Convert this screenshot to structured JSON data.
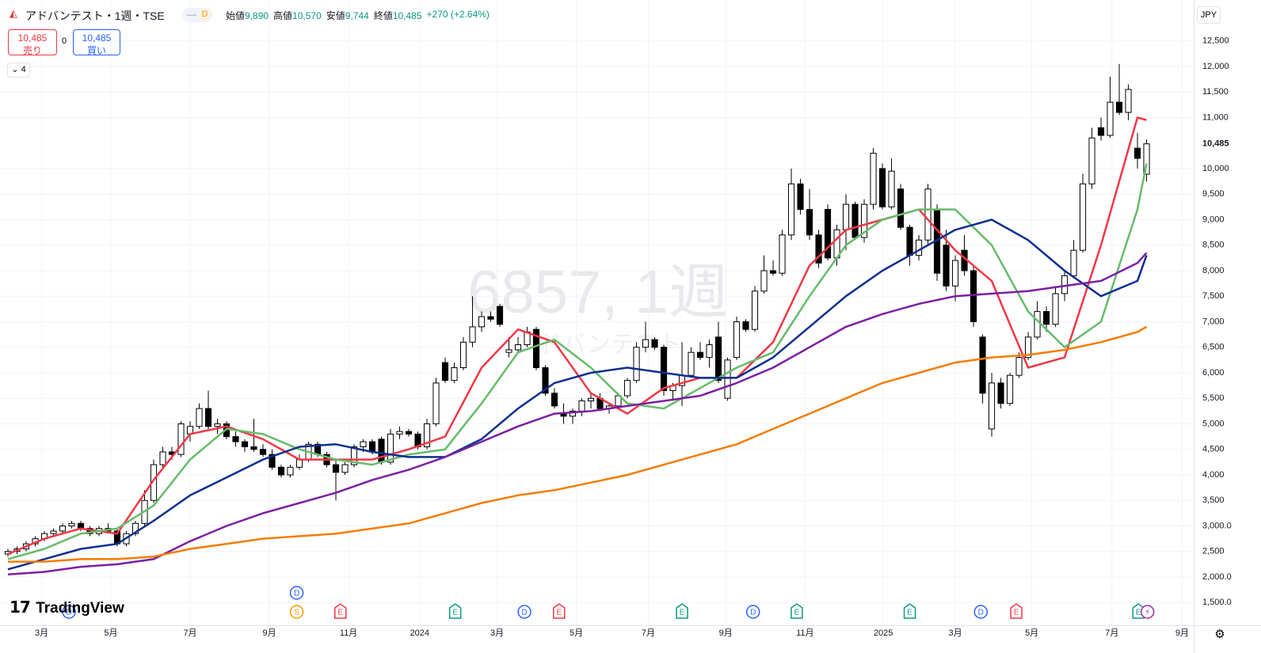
{
  "chart_data": {
    "type": "candlestick",
    "header": {
      "symbol": "アドバンテスト・1週・TSE",
      "interval_badge": "D",
      "ohlc": [
        {
          "label": "始値",
          "value": "9,890"
        },
        {
          "label": "高値",
          "value": "10,570"
        },
        {
          "label": "安値",
          "value": "9,744"
        },
        {
          "label": "終値",
          "value": "10,485"
        }
      ],
      "change": "+270 (+2.64%)"
    },
    "trade": {
      "sell_price": "10,485",
      "sell_label": "売り",
      "spread": "0",
      "buy_price": "10,485",
      "buy_label": "買い"
    },
    "indicators_count": "4",
    "currency": "JPY",
    "watermark": {
      "symbol": "6857, 1週",
      "name": "アドバンテスト"
    },
    "logo": "TradingView",
    "last_price": {
      "value": 10485,
      "label": "10,485"
    },
    "xlim": [
      -0.87,
      130.17
    ],
    "ylim": [
      1054,
      13302
    ],
    "xticks": [
      {
        "value": 3.7,
        "label": "3月"
      },
      {
        "value": 11.3,
        "label": "5月"
      },
      {
        "value": 20.0,
        "label": "7月"
      },
      {
        "value": 28.7,
        "label": "9月"
      },
      {
        "value": 37.4,
        "label": "11月"
      },
      {
        "value": 45.2,
        "label": "2024"
      },
      {
        "value": 53.7,
        "label": "3月"
      },
      {
        "value": 62.4,
        "label": "5月"
      },
      {
        "value": 70.3,
        "label": "7月"
      },
      {
        "value": 78.8,
        "label": "9月"
      },
      {
        "value": 87.5,
        "label": "11月"
      },
      {
        "value": 96.1,
        "label": "2025"
      },
      {
        "value": 104.0,
        "label": "3月"
      },
      {
        "value": 112.4,
        "label": "5月"
      },
      {
        "value": 121.2,
        "label": "7月"
      },
      {
        "value": 128.9,
        "label": "9月"
      }
    ],
    "yticks": [
      {
        "value": 1500,
        "label": "1,500.0"
      },
      {
        "value": 2000,
        "label": "2,000.0"
      },
      {
        "value": 2500,
        "label": "2,500"
      },
      {
        "value": 3000,
        "label": "3,000.0"
      },
      {
        "value": 3500,
        "label": "3,500"
      },
      {
        "value": 4000,
        "label": "4,000"
      },
      {
        "value": 4500,
        "label": "4,500"
      },
      {
        "value": 5000,
        "label": "5,000"
      },
      {
        "value": 5500,
        "label": "5,500"
      },
      {
        "value": 6000,
        "label": "6,000"
      },
      {
        "value": 6500,
        "label": "6,500"
      },
      {
        "value": 7000,
        "label": "7,000"
      },
      {
        "value": 7500,
        "label": "7,500"
      },
      {
        "value": 8000,
        "label": "8,000"
      },
      {
        "value": 8500,
        "label": "8,500"
      },
      {
        "value": 9000,
        "label": "9,000"
      },
      {
        "value": 9500,
        "label": "9,500"
      },
      {
        "value": 10000,
        "label": "10,000"
      },
      {
        "value": 11000,
        "label": "11,000"
      },
      {
        "value": 11500,
        "label": "11,500"
      },
      {
        "value": 12000,
        "label": "12,000"
      },
      {
        "value": 12500,
        "label": "12,500"
      }
    ],
    "grid": true,
    "candles": [
      [
        2450,
        2550,
        2400,
        2500
      ],
      [
        2500,
        2600,
        2450,
        2550
      ],
      [
        2550,
        2700,
        2500,
        2650
      ],
      [
        2650,
        2800,
        2600,
        2750
      ],
      [
        2750,
        2900,
        2700,
        2850
      ],
      [
        2850,
        2950,
        2800,
        2900
      ],
      [
        2900,
        3050,
        2850,
        3000
      ],
      [
        3000,
        3100,
        2950,
        3050
      ],
      [
        3050,
        3100,
        2900,
        2950
      ],
      [
        2950,
        3000,
        2800,
        2850
      ],
      [
        2850,
        3000,
        2800,
        2950
      ],
      [
        2950,
        3050,
        2850,
        2900
      ],
      [
        2900,
        2950,
        2600,
        2650
      ],
      [
        2650,
        2900,
        2600,
        2850
      ],
      [
        2850,
        3100,
        2800,
        3050
      ],
      [
        3050,
        3700,
        3000,
        3500
      ],
      [
        3500,
        4300,
        3450,
        4200
      ],
      [
        4200,
        4550,
        4150,
        4450
      ],
      [
        4450,
        4550,
        4300,
        4400
      ],
      [
        4400,
        5050,
        4350,
        5000
      ],
      [
        4800,
        5050,
        4650,
        4950
      ],
      [
        4950,
        5400,
        4900,
        5300
      ],
      [
        5300,
        5650,
        4900,
        4950
      ],
      [
        4950,
        5100,
        4800,
        5000
      ],
      [
        5000,
        5050,
        4700,
        4750
      ],
      [
        4750,
        4850,
        4550,
        4650
      ],
      [
        4650,
        4700,
        4450,
        4550
      ],
      [
        4550,
        5100,
        4450,
        4500
      ],
      [
        4500,
        4600,
        4350,
        4400
      ],
      [
        4400,
        4500,
        4100,
        4150
      ],
      [
        4150,
        4200,
        3950,
        4000
      ],
      [
        4000,
        4200,
        3950,
        4150
      ],
      [
        4150,
        4400,
        4100,
        4300
      ],
      [
        4300,
        4650,
        4250,
        4600
      ],
      [
        4600,
        4650,
        4350,
        4400
      ],
      [
        4400,
        4450,
        4150,
        4200
      ],
      [
        4200,
        4300,
        3500,
        4050
      ],
      [
        4050,
        4250,
        4000,
        4200
      ],
      [
        4200,
        4600,
        4150,
        4550
      ],
      [
        4550,
        4700,
        4450,
        4650
      ],
      [
        4650,
        4700,
        4400,
        4450
      ],
      [
        4700,
        4750,
        4200,
        4250
      ],
      [
        4250,
        4900,
        4200,
        4800
      ],
      [
        4800,
        4950,
        4700,
        4850
      ],
      [
        4850,
        4900,
        4750,
        4800
      ],
      [
        4800,
        4850,
        4500,
        4550
      ],
      [
        4550,
        5100,
        4500,
        5000
      ],
      [
        5000,
        5900,
        4950,
        5800
      ],
      [
        6200,
        6300,
        5800,
        5850
      ],
      [
        5850,
        6200,
        5800,
        6100
      ],
      [
        6100,
        6700,
        6050,
        6600
      ],
      [
        6600,
        7500,
        6500,
        6900
      ],
      [
        6900,
        7200,
        6800,
        7100
      ],
      [
        7100,
        7200,
        7000,
        7050
      ],
      [
        7300,
        7350,
        6900,
        6950
      ],
      [
        6400,
        6700,
        6300,
        6450
      ],
      [
        6450,
        6700,
        6400,
        6550
      ],
      [
        6550,
        6900,
        6500,
        6800
      ],
      [
        6850,
        6900,
        6050,
        6100
      ],
      [
        6100,
        6150,
        5550,
        5600
      ],
      [
        5600,
        5700,
        5300,
        5350
      ],
      [
        5200,
        5400,
        5000,
        5150
      ],
      [
        5150,
        5300,
        5000,
        5250
      ],
      [
        5250,
        5500,
        5150,
        5450
      ],
      [
        5450,
        5600,
        5300,
        5500
      ],
      [
        5500,
        5600,
        5250,
        5300
      ],
      [
        5300,
        5400,
        5200,
        5350
      ],
      [
        5350,
        5600,
        5300,
        5550
      ],
      [
        5550,
        5900,
        5500,
        5850
      ],
      [
        5850,
        6600,
        5800,
        6500
      ],
      [
        6500,
        7000,
        6400,
        6650
      ],
      [
        6650,
        6700,
        6450,
        6500
      ],
      [
        6500,
        6550,
        5550,
        5650
      ],
      [
        5650,
        5800,
        5450,
        5750
      ],
      [
        5750,
        6600,
        5350,
        5950
      ],
      [
        5950,
        6500,
        5900,
        6400
      ],
      [
        6400,
        6600,
        6250,
        6300
      ],
      [
        6300,
        6650,
        6100,
        6550
      ],
      [
        6700,
        7000,
        5800,
        5850
      ],
      [
        5500,
        6300,
        5450,
        6250
      ],
      [
        6300,
        7100,
        6250,
        7000
      ],
      [
        7000,
        7050,
        6800,
        6850
      ],
      [
        6850,
        7700,
        6800,
        7600
      ],
      [
        7600,
        8300,
        7550,
        8000
      ],
      [
        8000,
        8200,
        7900,
        7950
      ],
      [
        7950,
        8800,
        7900,
        8700
      ],
      [
        8700,
        10000,
        8600,
        9700
      ],
      [
        9700,
        9800,
        9100,
        9200
      ],
      [
        9200,
        9600,
        8600,
        8700
      ],
      [
        8700,
        8800,
        8050,
        8150
      ],
      [
        9200,
        9300,
        8200,
        8250
      ],
      [
        8250,
        8900,
        8100,
        8800
      ],
      [
        8800,
        9500,
        8400,
        9300
      ],
      [
        9300,
        9350,
        8600,
        8650
      ],
      [
        8650,
        9400,
        8550,
        9300
      ],
      [
        9300,
        10400,
        9200,
        10300
      ],
      [
        10000,
        10100,
        9200,
        9250
      ],
      [
        9250,
        10200,
        9200,
        9950
      ],
      [
        9600,
        9700,
        8800,
        8850
      ],
      [
        8850,
        8900,
        8100,
        8300
      ],
      [
        8300,
        8700,
        8200,
        8600
      ],
      [
        8600,
        9700,
        8500,
        9600
      ],
      [
        9200,
        9300,
        7800,
        7950
      ],
      [
        8500,
        8800,
        7600,
        7700
      ],
      [
        7700,
        8300,
        7400,
        8200
      ],
      [
        8400,
        8700,
        7900,
        8000
      ],
      [
        8000,
        8100,
        6900,
        7000
      ],
      [
        6700,
        6750,
        5400,
        5600
      ],
      [
        4900,
        6000,
        4750,
        5800
      ],
      [
        5800,
        5900,
        5300,
        5400
      ],
      [
        5400,
        6000,
        5350,
        5950
      ],
      [
        5950,
        6400,
        5900,
        6300
      ],
      [
        6300,
        6800,
        6250,
        6700
      ],
      [
        6700,
        7400,
        6650,
        7200
      ],
      [
        7200,
        7300,
        6800,
        6950
      ],
      [
        6950,
        7700,
        6900,
        7550
      ],
      [
        7550,
        8000,
        7400,
        7900
      ],
      [
        7900,
        8600,
        7850,
        8400
      ],
      [
        8400,
        9900,
        8350,
        9700
      ],
      [
        9700,
        10800,
        9600,
        10600
      ],
      [
        10800,
        11000,
        10550,
        10650
      ],
      [
        10650,
        11800,
        10600,
        11300
      ],
      [
        11300,
        12050,
        11050,
        11100
      ],
      [
        11100,
        11650,
        10950,
        11550
      ],
      [
        10400,
        10700,
        10000,
        10200
      ],
      [
        9890,
        10570,
        9744,
        10485
      ]
    ],
    "x": [
      0,
      4,
      8,
      12,
      16,
      20,
      24,
      28,
      32,
      36,
      40,
      44,
      48,
      52,
      56,
      60,
      64,
      68,
      72,
      76,
      80,
      84,
      88,
      92,
      96,
      100,
      104,
      108,
      112,
      116,
      120,
      124,
      125
    ],
    "series": [
      {
        "color": "#f23645",
        "values": [
          2450,
          2750,
          2950,
          2850,
          3900,
          4800,
          4950,
          4700,
          4300,
          4300,
          4300,
          4500,
          4750,
          6100,
          6850,
          6600,
          5600,
          5200,
          5700,
          5900,
          5900,
          6600,
          8100,
          8800,
          9000,
          9200,
          8400,
          7800,
          6100,
          6300,
          8500,
          11000,
          10950
        ]
      },
      {
        "color": "#66bb6a",
        "values": [
          2350,
          2550,
          2850,
          2950,
          3400,
          4300,
          4900,
          4800,
          4500,
          4300,
          4200,
          4400,
          4500,
          5400,
          6400,
          6650,
          6100,
          5400,
          5300,
          5700,
          6100,
          6400,
          7500,
          8500,
          9000,
          9200,
          9200,
          8500,
          7200,
          6500,
          7000,
          9200,
          10100
        ]
      },
      {
        "color": "#0d2f8f",
        "values": [
          2150,
          2350,
          2550,
          2650,
          3100,
          3600,
          3950,
          4300,
          4550,
          4600,
          4450,
          4350,
          4350,
          4700,
          5300,
          5800,
          6000,
          6100,
          6000,
          5900,
          5900,
          6300,
          6900,
          7500,
          8000,
          8400,
          8800,
          9000,
          8600,
          8000,
          7500,
          7800,
          8300
        ]
      },
      {
        "color": "#7b1fa2",
        "values": [
          2050,
          2100,
          2200,
          2250,
          2350,
          2700,
          3000,
          3250,
          3450,
          3650,
          3900,
          4100,
          4350,
          4650,
          4950,
          5200,
          5250,
          5350,
          5450,
          5550,
          5800,
          6100,
          6500,
          6900,
          7150,
          7350,
          7500,
          7550,
          7600,
          7700,
          7800,
          8150,
          8350
        ]
      },
      {
        "color": "#f57c00",
        "values": [
          2300,
          2300,
          2350,
          2350,
          2400,
          2550,
          2650,
          2750,
          2800,
          2850,
          2950,
          3050,
          3250,
          3450,
          3600,
          3700,
          3850,
          4000,
          4200,
          4400,
          4600,
          4900,
          5200,
          5500,
          5800,
          6000,
          6200,
          6300,
          6350,
          6450,
          6600,
          6800,
          6900
        ]
      }
    ],
    "events": [
      {
        "label": "D",
        "x": 6.7,
        "color": "#2962ff",
        "marker": "circle"
      },
      {
        "label": "S",
        "x": 31.7,
        "color": "#ff9800",
        "marker": "circle"
      },
      {
        "label": "D",
        "x": 31.7,
        "color": "#2962ff",
        "marker": "circle"
      },
      {
        "label": "E",
        "x": 36.5,
        "color": "#f23645",
        "marker": "flag"
      },
      {
        "label": "E",
        "x": 49.1,
        "color": "#089981",
        "marker": "flag"
      },
      {
        "label": "D",
        "x": 56.7,
        "color": "#2962ff",
        "marker": "circle"
      },
      {
        "label": "E",
        "x": 60.5,
        "color": "#f23645",
        "marker": "flag"
      },
      {
        "label": "E",
        "x": 74.0,
        "color": "#089981",
        "marker": "flag"
      },
      {
        "label": "D",
        "x": 81.8,
        "color": "#2962ff",
        "marker": "circle"
      },
      {
        "label": "E",
        "x": 86.6,
        "color": "#089981",
        "marker": "flag"
      },
      {
        "label": "E",
        "x": 99.0,
        "color": "#089981",
        "marker": "flag"
      },
      {
        "label": "D",
        "x": 106.8,
        "color": "#2962ff",
        "marker": "circle"
      },
      {
        "label": "E",
        "x": 110.7,
        "color": "#f23645",
        "marker": "flag"
      },
      {
        "label": "E",
        "x": 124.1,
        "color": "#089981",
        "marker": "flag"
      },
      {
        "label": "⚡",
        "x": 125.1,
        "color": "#9c27b0",
        "marker": "circle"
      }
    ]
  }
}
